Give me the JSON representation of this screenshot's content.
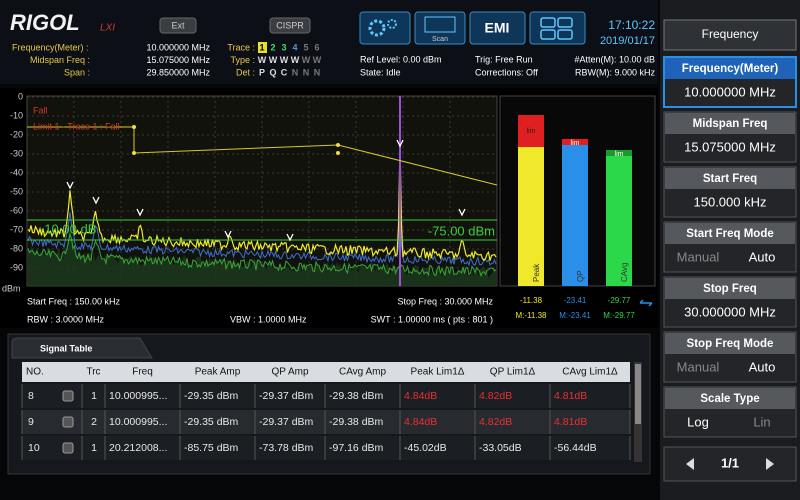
{
  "header": {
    "logo": "RIGOL",
    "lxi": "LXI",
    "buttons": [
      "Ext",
      "CISPR"
    ],
    "scan": "Scan",
    "emi": "EMI",
    "time": "17:10:22",
    "date": "2019/01/17"
  },
  "status": {
    "left": [
      {
        "label": "Frequency(Meter) :",
        "value": "10.000000 MHz"
      },
      {
        "label": "Midspan Freq :",
        "value": "15.075000 MHz"
      },
      {
        "label": "Span :",
        "value": "29.850000 MHz"
      }
    ],
    "traces": [
      {
        "label": "Trace :",
        "values": [
          "1",
          "2",
          "3",
          "4",
          "5",
          "6"
        ]
      },
      {
        "label": "Type :",
        "values": [
          "W",
          "W",
          "W",
          "W",
          "W",
          "W"
        ]
      },
      {
        "label": "Det :",
        "values": [
          "P",
          "Q",
          "C",
          "N",
          "N",
          "N"
        ]
      }
    ],
    "ref_level": "Ref Level: 0.00 dBm",
    "state": "State: Idle",
    "trig": "Trig: Free Run",
    "corrections": "Corrections: Off",
    "atten": "#Atten(M): 10.00 dB",
    "rbw_m": "RBW(M): 9.000 kHz"
  },
  "plot": {
    "y_labels": [
      "0",
      "-10",
      "-20",
      "-30",
      "-40",
      "-50",
      "-60",
      "-70",
      "-80",
      "-90"
    ],
    "unit": "dBm",
    "fall": "Fall",
    "limit": "Limit 1 - Trace 1 : Fall",
    "relative_line": "-10.00 dB",
    "absolute_line": "-75.00 dBm",
    "start": "Start Freq : 150.00 kHz",
    "stop": "Stop Freq : 30.000 MHz",
    "rbw": "RBW : 3.0000 MHz",
    "vbw": "VBW : 1.0000 MHz",
    "swt": "SWT : 1.00000 ms ( pts : 801 )"
  },
  "meter": [
    {
      "name": "Peak",
      "lim": "lim",
      "value": "-11.38",
      "marker": "M:-11.38"
    },
    {
      "name": "QP",
      "lim": "lim",
      "value": "-23.41",
      "marker": "M:-23.41"
    },
    {
      "name": "CAvg",
      "lim": "lim",
      "value": "-29.77",
      "marker": "M:-29.77"
    }
  ],
  "table": {
    "title": "Signal Table",
    "columns": [
      "NO.",
      "Trc",
      "Freq",
      "Peak Amp",
      "QP Amp",
      "CAvg Amp",
      "Peak Lim1Δ",
      "QP Lim1Δ",
      "CAvg Lim1Δ"
    ],
    "rows": [
      [
        "8",
        "1",
        "10.000995...",
        "-29.35 dBm",
        "-29.37 dBm",
        "-29.38 dBm",
        "4.84dB",
        "4.82dB",
        "4.81dB"
      ],
      [
        "9",
        "2",
        "10.000995...",
        "-29.35 dBm",
        "-29.37 dBm",
        "-29.38 dBm",
        "4.84dB",
        "4.82dB",
        "4.81dB"
      ],
      [
        "10",
        "1",
        "20.212008...",
        "-85.75 dBm",
        "-73.78 dBm",
        "-97.16 dBm",
        "-45.02dB",
        "-33.05dB",
        "-56.44dB"
      ]
    ]
  },
  "menu": {
    "title": "Frequency",
    "items": [
      {
        "label": "Frequency(Meter)",
        "value": "10.000000 MHz"
      },
      {
        "label": "Midspan Freq",
        "value": "15.075000 MHz"
      },
      {
        "label": "Start Freq",
        "value": "150.000 kHz"
      },
      {
        "label": "Start Freq Mode",
        "options": [
          "Manual",
          "Auto"
        ]
      },
      {
        "label": "Stop Freq",
        "value": "30.000000 MHz"
      },
      {
        "label": "Stop Freq Mode",
        "options": [
          "Manual",
          "Auto"
        ]
      },
      {
        "label": "Scale Type",
        "options": [
          "Log",
          "Lin"
        ]
      }
    ],
    "page": "1/1"
  }
}
